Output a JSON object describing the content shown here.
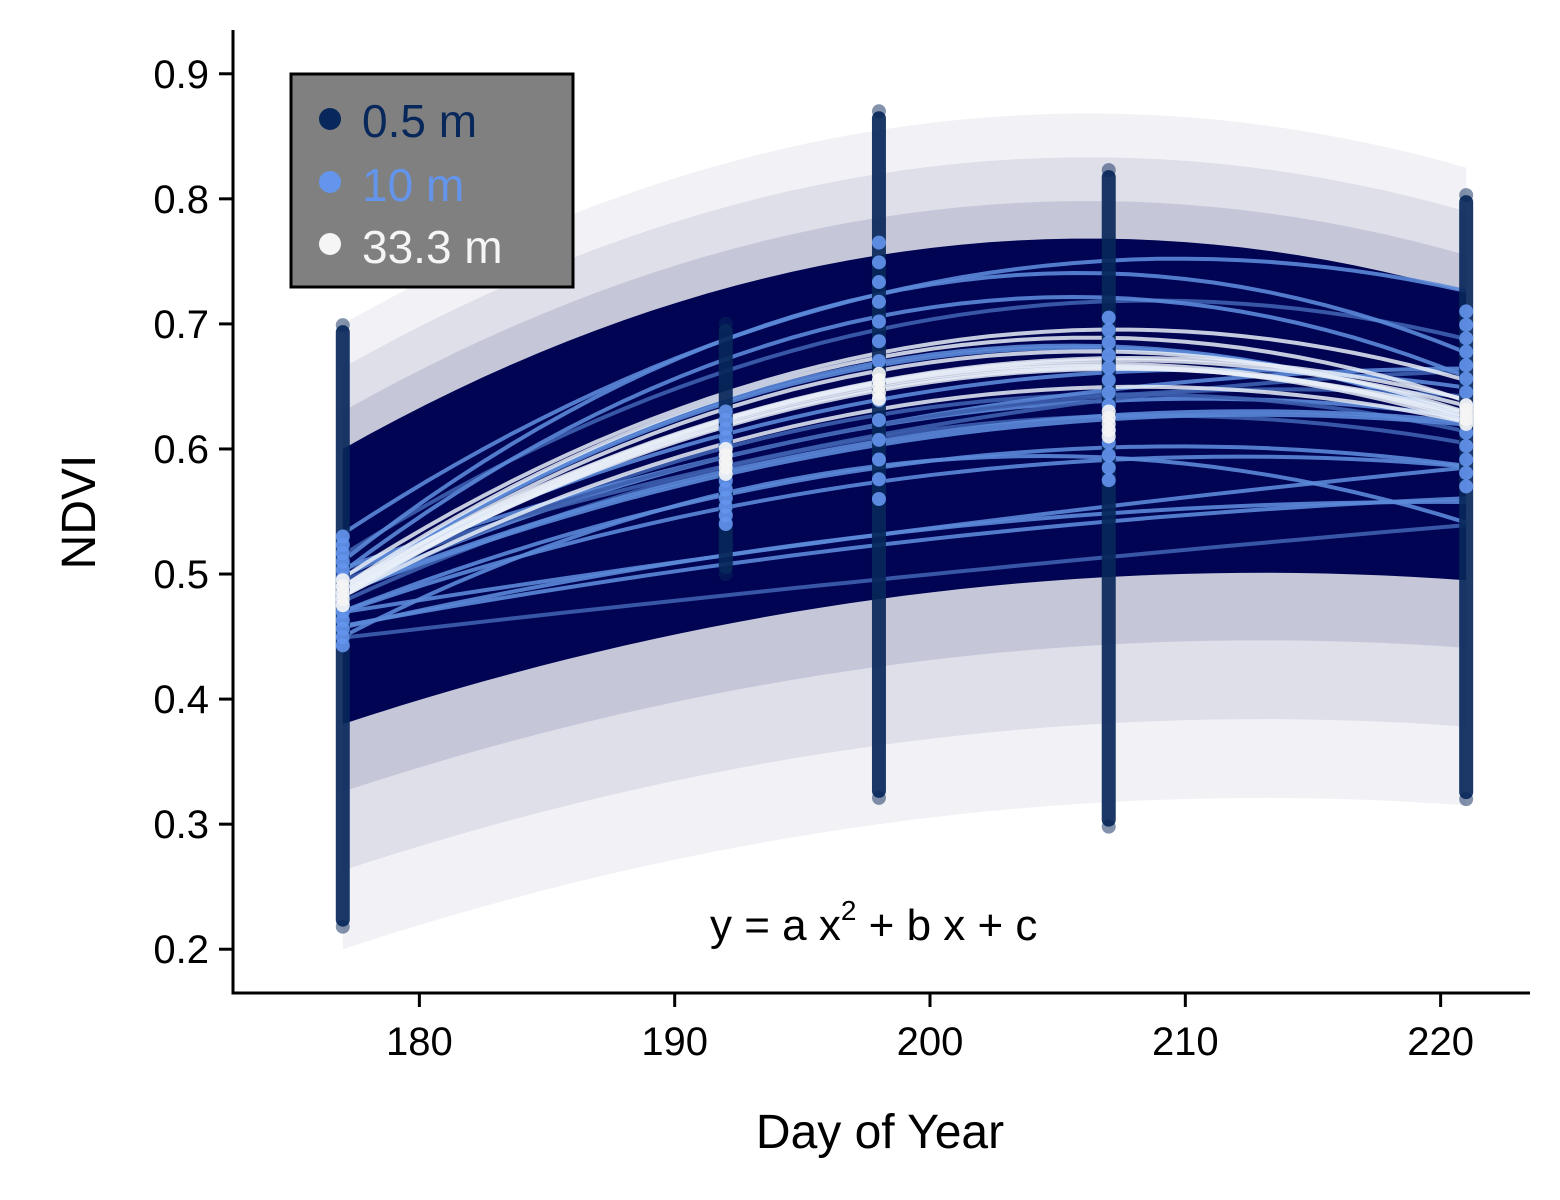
{
  "chart_data": {
    "type": "scatter",
    "title": "",
    "xlabel": "Day of Year",
    "ylabel": "NDVI",
    "xlim": [
      172.7,
      223.5
    ],
    "ylim": [
      0.165,
      0.935
    ],
    "xticks": [
      180,
      190,
      200,
      210,
      220
    ],
    "yticks": [
      0.2,
      0.3,
      0.4,
      0.5,
      0.6,
      0.7,
      0.8,
      0.9
    ],
    "grid": false,
    "legend_position": "top-left",
    "legend_background": "#808080",
    "annotation": {
      "base": "y = a x",
      "superscript": "2",
      "rest": " + b x + c"
    },
    "series": [
      {
        "name": "0.5 m",
        "color": "#08275a",
        "curve_color": "#000452",
        "points": [
          {
            "x": 177,
            "y_min": 0.218,
            "y_max": 0.699,
            "mean": 0.48
          },
          {
            "x": 192,
            "y_min": 0.5,
            "y_max": 0.7,
            "mean": 0.59
          },
          {
            "x": 198,
            "y_min": 0.321,
            "y_max": 0.87,
            "mean": 0.62
          },
          {
            "x": 207,
            "y_min": 0.298,
            "y_max": 0.823,
            "mean": 0.62
          },
          {
            "x": 221,
            "y_min": 0.32,
            "y_max": 0.803,
            "mean": 0.6
          }
        ],
        "fit_band": {
          "lower": [
            0.38,
            0.455,
            0.48,
            0.505,
            0.495
          ],
          "upper": [
            0.6,
            0.715,
            0.755,
            0.765,
            0.725
          ]
        }
      },
      {
        "name": "10 m",
        "color": "#6495ed",
        "curve_color": "#5b8ad8",
        "points": [
          {
            "x": 177,
            "y_min": 0.443,
            "y_max": 0.53,
            "mean": 0.485
          },
          {
            "x": 192,
            "y_min": 0.54,
            "y_max": 0.63,
            "mean": 0.585
          },
          {
            "x": 198,
            "y_min": 0.56,
            "y_max": 0.765,
            "mean": 0.63
          },
          {
            "x": 207,
            "y_min": 0.575,
            "y_max": 0.705,
            "mean": 0.63
          },
          {
            "x": 221,
            "y_min": 0.57,
            "y_max": 0.71,
            "mean": 0.62
          }
        ]
      },
      {
        "name": "33.3 m",
        "color": "#f5f5f5",
        "curve_color": "#e8eef8",
        "points": [
          {
            "x": 177,
            "y_min": 0.475,
            "y_max": 0.495,
            "mean": 0.485
          },
          {
            "x": 192,
            "y_min": 0.58,
            "y_max": 0.6,
            "mean": 0.59
          },
          {
            "x": 198,
            "y_min": 0.64,
            "y_max": 0.66,
            "mean": 0.65
          },
          {
            "x": 207,
            "y_min": 0.61,
            "y_max": 0.63,
            "mean": 0.62
          },
          {
            "x": 221,
            "y_min": 0.62,
            "y_max": 0.635,
            "mean": 0.628
          }
        ]
      }
    ]
  }
}
